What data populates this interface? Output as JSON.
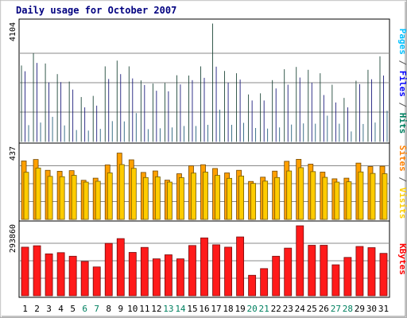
{
  "chart_data": {
    "type": "bar",
    "title": "Daily usage for October 2007",
    "categories": [
      "1",
      "2",
      "3",
      "4",
      "5",
      "6",
      "7",
      "8",
      "9",
      "10",
      "11",
      "12",
      "13",
      "14",
      "15",
      "16",
      "17",
      "18",
      "19",
      "20",
      "21",
      "22",
      "23",
      "24",
      "25",
      "26",
      "27",
      "28",
      "29",
      "30",
      "31"
    ],
    "weekend_days": [
      "6",
      "7",
      "13",
      "14",
      "20",
      "21",
      "27",
      "28"
    ],
    "grid": true,
    "panels": [
      {
        "id": "hits",
        "ymax_label": "4104",
        "ylim": [
          0,
          4104
        ],
        "side_labels": [
          {
            "text": "Pages",
            "color": "#00c0ff"
          },
          {
            "text": " / ",
            "color": "#555555"
          },
          {
            "text": "Files",
            "color": "#0000ff"
          },
          {
            "text": " / ",
            "color": "#555555"
          },
          {
            "text": "Hits",
            "color": "#008060"
          }
        ],
        "series": [
          {
            "name": "Hits",
            "color": "#1f8060",
            "values": [
              2640,
              3070,
              2710,
              2340,
              2080,
              1540,
              1580,
              2610,
              2810,
              2610,
              2120,
              2010,
              2030,
              2300,
              2290,
              2610,
              4104,
              2450,
              2370,
              1630,
              1670,
              2130,
              2510,
              2590,
              2490,
              2370,
              1970,
              1510,
              2110,
              2490,
              2960
            ]
          },
          {
            "name": "Files",
            "color": "#1a1aff",
            "values": [
              2440,
              2730,
              2050,
              2060,
              1800,
              1180,
              1240,
              2170,
              2340,
              2190,
              1960,
              1760,
              1740,
              1980,
              2130,
              2210,
              2600,
              2040,
              2150,
              1420,
              1420,
              1840,
              1970,
              2220,
              2040,
              1610,
              1350,
              1180,
              1990,
              2160,
              2290
            ]
          },
          {
            "name": "Pages",
            "color": "#33c0ff",
            "values": [
              560,
              650,
              850,
              550,
              390,
              370,
              430,
              700,
              690,
              980,
              420,
              450,
              480,
              530,
              530,
              570,
              1100,
              570,
              640,
              460,
              440,
              480,
              580,
              620,
              610,
              890,
              610,
              340,
              600,
              650,
              1060
            ]
          }
        ]
      },
      {
        "id": "visits",
        "ymax_label": "437",
        "ylim": [
          0,
          437
        ],
        "side_labels": [
          {
            "text": "Sites",
            "color": "#ff8000"
          },
          {
            "text": " / ",
            "color": "#555555"
          },
          {
            "text": "Visits",
            "color": "#ffd000"
          }
        ],
        "series": [
          {
            "name": "Visits",
            "color": "#ffa000",
            "values": [
              357,
              366,
              300,
              294,
              298,
              239,
              252,
              333,
              405,
              364,
              287,
              296,
              240,
              279,
              327,
              334,
              311,
              284,
              300,
              232,
              258,
              295,
              355,
              367,
              338,
              289,
              248,
              252,
              344,
              323,
              325
            ]
          },
          {
            "name": "Sites",
            "color": "#ffcc00",
            "values": [
              288,
              314,
              263,
              261,
              269,
              228,
              233,
              284,
              335,
              312,
              256,
              260,
              228,
              255,
              283,
              289,
              269,
              251,
              265,
              220,
              234,
              256,
              296,
              316,
              292,
              257,
              228,
              230,
              290,
              281,
              279
            ]
          }
        ]
      },
      {
        "id": "kbytes",
        "ymax_label": "293860",
        "ylim": [
          0,
          293860
        ],
        "side_labels": [
          {
            "text": "KBytes",
            "color": "#ff0000"
          }
        ],
        "series": [
          {
            "name": "KBytes",
            "color": "#ff1a1a",
            "values": [
              204000,
              210000,
              176000,
              181000,
              166000,
              144000,
              121000,
              220000,
              240000,
              182000,
              203000,
              155000,
              172000,
              155000,
              211000,
              243000,
              214000,
              204000,
              247000,
              86000,
              114000,
              166000,
              200000,
              293860,
              212000,
              212000,
              130000,
              161000,
              207000,
              202000,
              178000
            ]
          }
        ]
      }
    ]
  }
}
